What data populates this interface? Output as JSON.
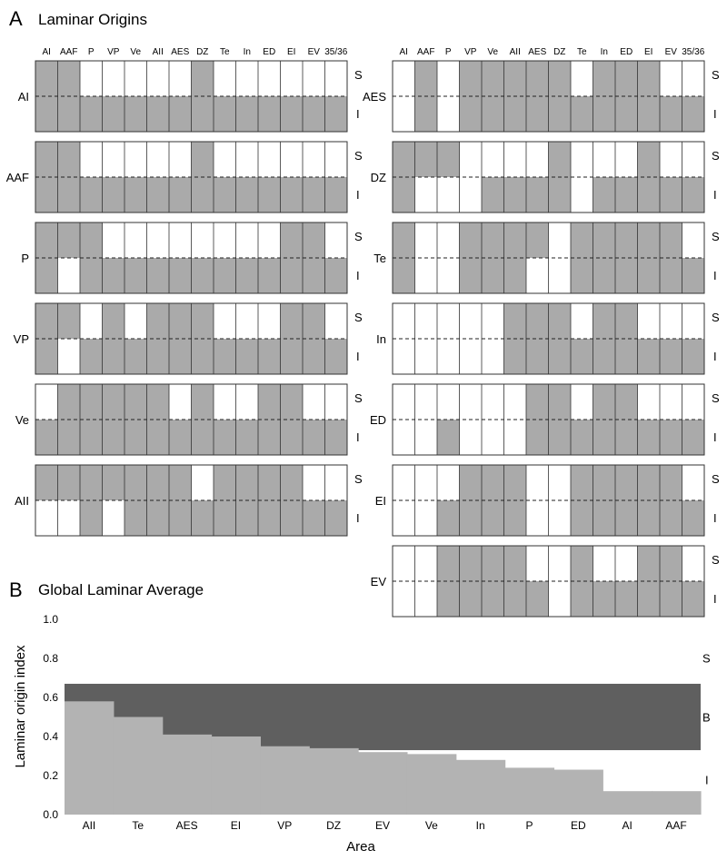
{
  "panel_a": {
    "letter": "A",
    "title": "Laminar Origins",
    "column_labels": [
      "AI",
      "AAF",
      "P",
      "VP",
      "Ve",
      "AII",
      "AES",
      "DZ",
      "Te",
      "In",
      "ED",
      "EI",
      "EV",
      "35/36"
    ],
    "super_label": "S",
    "infra_label": "I",
    "grids": [
      {
        "label": "AI",
        "rows": [
          [
            "g",
            "g",
            "w",
            "w",
            "w",
            "w",
            "w",
            "g",
            "w",
            "w",
            "w",
            "w",
            "w",
            "w"
          ],
          [
            "g",
            "g",
            "g",
            "g",
            "g",
            "g",
            "g",
            "g",
            "g",
            "g",
            "g",
            "g",
            "g",
            "g"
          ]
        ]
      },
      {
        "label": "AAF",
        "rows": [
          [
            "g",
            "g",
            "w",
            "w",
            "w",
            "w",
            "w",
            "g",
            "w",
            "w",
            "w",
            "w",
            "w",
            "w"
          ],
          [
            "g",
            "g",
            "g",
            "g",
            "g",
            "g",
            "g",
            "g",
            "g",
            "g",
            "g",
            "g",
            "g",
            "g"
          ]
        ]
      },
      {
        "label": "P",
        "rows": [
          [
            "g",
            "g",
            "g",
            "w",
            "w",
            "w",
            "w",
            "w",
            "w",
            "w",
            "w",
            "g",
            "g",
            "w"
          ],
          [
            "g",
            "w",
            "g",
            "g",
            "g",
            "g",
            "g",
            "g",
            "g",
            "g",
            "g",
            "g",
            "g",
            "g"
          ]
        ]
      },
      {
        "label": "VP",
        "rows": [
          [
            "g",
            "g",
            "w",
            "g",
            "w",
            "g",
            "g",
            "g",
            "w",
            "w",
            "w",
            "g",
            "g",
            "w"
          ],
          [
            "g",
            "w",
            "g",
            "g",
            "g",
            "g",
            "g",
            "g",
            "g",
            "g",
            "g",
            "g",
            "g",
            "g"
          ]
        ]
      },
      {
        "label": "Ve",
        "rows": [
          [
            "w",
            "g",
            "g",
            "g",
            "g",
            "g",
            "w",
            "g",
            "w",
            "w",
            "g",
            "g",
            "w",
            "w"
          ],
          [
            "g",
            "g",
            "g",
            "g",
            "g",
            "g",
            "g",
            "g",
            "g",
            "g",
            "g",
            "g",
            "g",
            "g"
          ]
        ]
      },
      {
        "label": "AII",
        "rows": [
          [
            "g",
            "g",
            "g",
            "g",
            "g",
            "g",
            "g",
            "w",
            "g",
            "g",
            "g",
            "g",
            "w",
            "w"
          ],
          [
            "w",
            "w",
            "g",
            "w",
            "g",
            "g",
            "g",
            "g",
            "g",
            "g",
            "g",
            "g",
            "g",
            "g"
          ]
        ]
      },
      {
        "label": "AES",
        "rows": [
          [
            "w",
            "g",
            "w",
            "g",
            "g",
            "g",
            "g",
            "g",
            "w",
            "g",
            "g",
            "g",
            "w",
            "w"
          ],
          [
            "w",
            "g",
            "w",
            "g",
            "g",
            "g",
            "g",
            "g",
            "g",
            "g",
            "g",
            "g",
            "g",
            "g"
          ]
        ]
      },
      {
        "label": "DZ",
        "rows": [
          [
            "g",
            "g",
            "g",
            "w",
            "w",
            "w",
            "w",
            "g",
            "w",
            "w",
            "w",
            "g",
            "w",
            "w"
          ],
          [
            "g",
            "w",
            "w",
            "w",
            "g",
            "g",
            "g",
            "g",
            "w",
            "g",
            "g",
            "g",
            "g",
            "g"
          ]
        ]
      },
      {
        "label": "Te",
        "rows": [
          [
            "g",
            "w",
            "w",
            "g",
            "g",
            "g",
            "g",
            "w",
            "g",
            "g",
            "g",
            "g",
            "g",
            "w"
          ],
          [
            "g",
            "w",
            "w",
            "g",
            "g",
            "g",
            "w",
            "w",
            "g",
            "g",
            "g",
            "g",
            "g",
            "g"
          ]
        ]
      },
      {
        "label": "In",
        "rows": [
          [
            "w",
            "w",
            "w",
            "w",
            "w",
            "g",
            "g",
            "g",
            "w",
            "g",
            "g",
            "w",
            "w",
            "w"
          ],
          [
            "w",
            "w",
            "w",
            "w",
            "w",
            "g",
            "g",
            "g",
            "g",
            "g",
            "g",
            "g",
            "g",
            "g"
          ]
        ]
      },
      {
        "label": "ED",
        "rows": [
          [
            "w",
            "w",
            "w",
            "w",
            "w",
            "w",
            "g",
            "g",
            "w",
            "g",
            "g",
            "w",
            "w",
            "w"
          ],
          [
            "w",
            "w",
            "g",
            "w",
            "w",
            "w",
            "g",
            "g",
            "g",
            "g",
            "g",
            "g",
            "g",
            "g"
          ]
        ]
      },
      {
        "label": "EI",
        "rows": [
          [
            "w",
            "w",
            "w",
            "g",
            "g",
            "g",
            "w",
            "w",
            "g",
            "g",
            "g",
            "g",
            "g",
            "w"
          ],
          [
            "w",
            "w",
            "g",
            "g",
            "g",
            "g",
            "w",
            "w",
            "g",
            "g",
            "g",
            "g",
            "g",
            "g"
          ]
        ]
      },
      {
        "label": "EV",
        "rows": [
          [
            "w",
            "w",
            "g",
            "g",
            "g",
            "g",
            "w",
            "w",
            "g",
            "w",
            "w",
            "g",
            "g",
            "w"
          ],
          [
            "w",
            "w",
            "g",
            "g",
            "g",
            "g",
            "g",
            "w",
            "g",
            "g",
            "g",
            "g",
            "g",
            "g"
          ]
        ]
      }
    ]
  },
  "panel_b": {
    "letter": "B",
    "title": "Global Laminar Average",
    "chart_data": {
      "type": "area",
      "title": "Global Laminar Average",
      "xlabel": "Area",
      "ylabel": "Laminar origin index",
      "categories": [
        "AII",
        "Te",
        "AES",
        "EI",
        "VP",
        "DZ",
        "EV",
        "Ve",
        "In",
        "P",
        "ED",
        "AI",
        "AAF"
      ],
      "values": [
        0.58,
        0.5,
        0.41,
        0.4,
        0.35,
        0.34,
        0.32,
        0.31,
        0.28,
        0.24,
        0.23,
        0.12,
        0.12
      ],
      "bilaminar_band": [
        0.33,
        0.67
      ],
      "ylim": [
        0.0,
        1.0
      ],
      "yticks": [
        "0.0",
        "0.2",
        "0.4",
        "0.6",
        "0.8",
        "1.0"
      ],
      "region_labels": {
        "supra": "S",
        "bilaminar": "B",
        "infra": "I"
      },
      "colors": {
        "index_fill": "#b3b3b3",
        "band_fill": "#5f5f5f"
      }
    }
  },
  "colors": {
    "cell_fill": "#aaaaaa",
    "cell_empty": "#ffffff",
    "border": "#333333"
  }
}
